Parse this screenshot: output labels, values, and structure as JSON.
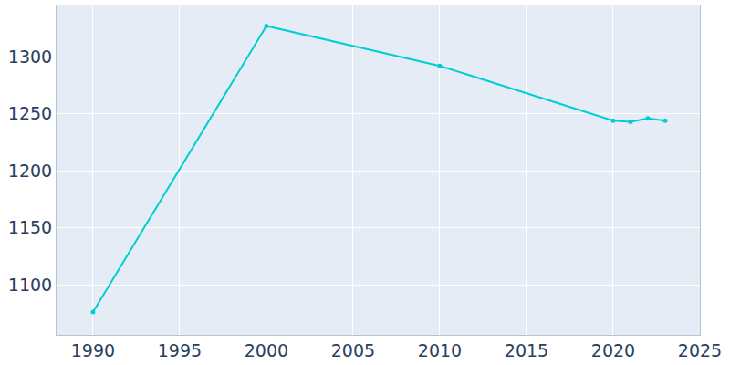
{
  "chart_data": {
    "type": "line",
    "x": [
      1990,
      2000,
      2010,
      2020,
      2021,
      2022,
      2023
    ],
    "values": [
      1076,
      1327,
      1292,
      1244,
      1243,
      1246,
      1244
    ],
    "color": "#00ced1",
    "marker": "circle",
    "xlim": [
      1987.9,
      2025
    ],
    "ylim": [
      1056,
      1345
    ],
    "xticks": [
      1990,
      1995,
      2000,
      2005,
      2010,
      2015,
      2020,
      2025
    ],
    "yticks": [
      1100,
      1150,
      1200,
      1250,
      1300
    ],
    "grid": true
  }
}
